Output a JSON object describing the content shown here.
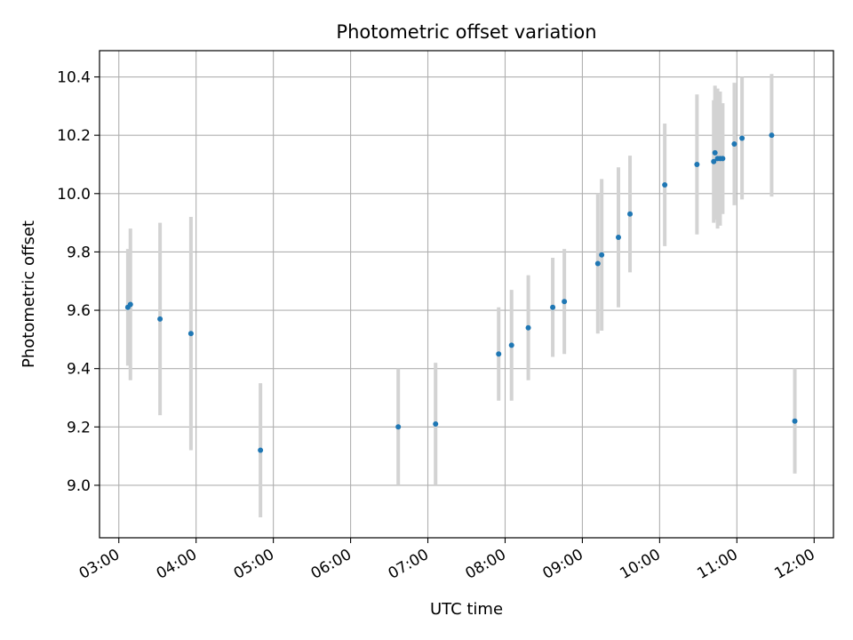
{
  "chart_data": {
    "type": "scatter",
    "title": "Photometric offset variation",
    "xlabel": "UTC time",
    "ylabel": "Photometric offset",
    "xlim": [
      "02:45",
      "12:15"
    ],
    "ylim": [
      8.82,
      10.49
    ],
    "x_ticks": [
      "03:00",
      "04:00",
      "05:00",
      "06:00",
      "07:00",
      "08:00",
      "09:00",
      "10:00",
      "11:00",
      "12:00"
    ],
    "y_ticks": [
      "9.0",
      "9.2",
      "9.4",
      "9.6",
      "9.8",
      "10.0",
      "10.2",
      "10.4"
    ],
    "grid": true,
    "colors": {
      "point": "#1f77b4",
      "errorbar": "#d3d3d3",
      "grid": "#b0b0b0"
    },
    "series": [
      {
        "points": [
          {
            "x": "03:07",
            "y": 9.61,
            "err": 0.2
          },
          {
            "x": "03:09",
            "y": 9.62,
            "err": 0.26
          },
          {
            "x": "03:32",
            "y": 9.57,
            "err": 0.33
          },
          {
            "x": "03:56",
            "y": 9.52,
            "err": 0.4
          },
          {
            "x": "04:50",
            "y": 9.12,
            "err": 0.23
          },
          {
            "x": "06:37",
            "y": 9.2,
            "err": 0.2
          },
          {
            "x": "07:06",
            "y": 9.21,
            "err": 0.21
          },
          {
            "x": "07:55",
            "y": 9.45,
            "err": 0.16
          },
          {
            "x": "08:05",
            "y": 9.48,
            "err": 0.19
          },
          {
            "x": "08:18",
            "y": 9.54,
            "err": 0.18
          },
          {
            "x": "08:37",
            "y": 9.61,
            "err": 0.17
          },
          {
            "x": "08:46",
            "y": 9.63,
            "err": 0.18
          },
          {
            "x": "09:12",
            "y": 9.76,
            "err": 0.24
          },
          {
            "x": "09:15",
            "y": 9.79,
            "err": 0.26
          },
          {
            "x": "09:28",
            "y": 9.85,
            "err": 0.24
          },
          {
            "x": "09:37",
            "y": 9.93,
            "err": 0.2
          },
          {
            "x": "10:04",
            "y": 10.03,
            "err": 0.21
          },
          {
            "x": "10:29",
            "y": 10.1,
            "err": 0.24
          },
          {
            "x": "10:42",
            "y": 10.11,
            "err": 0.21
          },
          {
            "x": "10:43",
            "y": 10.14,
            "err": 0.23
          },
          {
            "x": "10:45",
            "y": 10.12,
            "err": 0.24
          },
          {
            "x": "10:47",
            "y": 10.12,
            "err": 0.23
          },
          {
            "x": "10:49",
            "y": 10.12,
            "err": 0.19
          },
          {
            "x": "10:58",
            "y": 10.17,
            "err": 0.21
          },
          {
            "x": "11:04",
            "y": 10.19,
            "err": 0.21
          },
          {
            "x": "11:27",
            "y": 10.2,
            "err": 0.21
          },
          {
            "x": "11:45",
            "y": 9.22,
            "err": 0.18
          }
        ]
      }
    ]
  }
}
